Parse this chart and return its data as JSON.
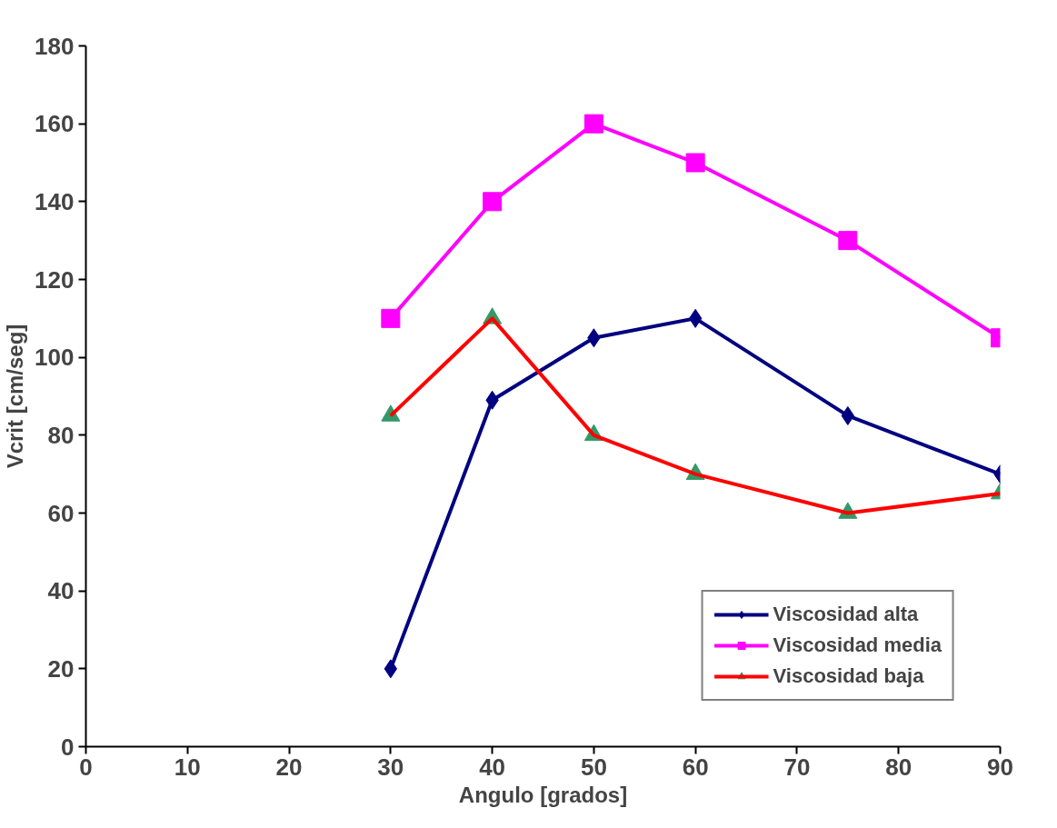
{
  "chart_data": {
    "type": "line",
    "xlabel": "Angulo [grados]",
    "ylabel": "Vcrit [cm/seg]",
    "x": [
      30,
      40,
      50,
      60,
      75,
      90
    ],
    "series": [
      {
        "name": "Viscosidad alta",
        "color": "#000080",
        "marker": "diamond",
        "values": [
          20,
          89,
          105,
          110,
          85,
          70
        ]
      },
      {
        "name": "Viscosidad media",
        "color": "#ff00ff",
        "marker": "square",
        "values": [
          110,
          140,
          160,
          150,
          130,
          105
        ]
      },
      {
        "name": "Viscosidad baja",
        "color": "#ff0000",
        "marker": "triangle",
        "colors": [
          "#339966",
          "#339966",
          "#339966",
          "#339966",
          "#339966",
          "#339966"
        ],
        "values": [
          85,
          110,
          80,
          70,
          60,
          65
        ]
      }
    ],
    "xlim": [
      0,
      90
    ],
    "xticks": [
      0,
      10,
      20,
      30,
      40,
      50,
      60,
      70,
      80,
      90
    ],
    "ylim": [
      0,
      180
    ],
    "yticks": [
      0,
      20,
      40,
      60,
      80,
      100,
      120,
      140,
      160,
      180
    ],
    "grid": false,
    "legend": "bottom right",
    "line_style": "solid"
  }
}
